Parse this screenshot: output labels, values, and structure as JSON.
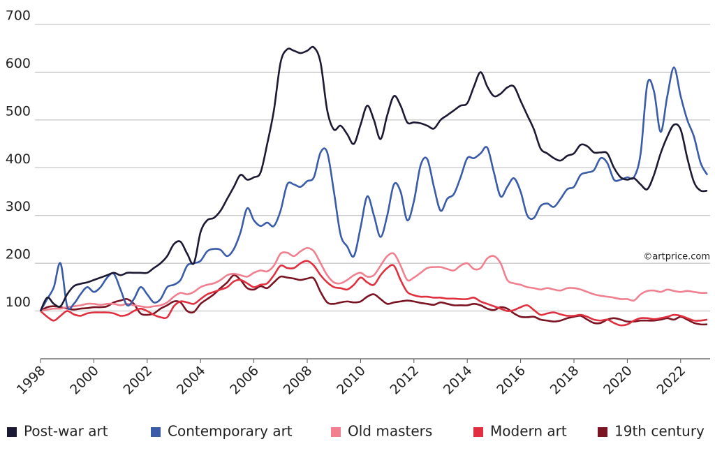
{
  "chart_data": {
    "type": "line",
    "annotation": "©artprice.com",
    "x": [
      1998,
      1998.25,
      1998.5,
      1998.75,
      1999,
      1999.25,
      1999.5,
      1999.75,
      2000,
      2000.25,
      2000.5,
      2000.75,
      2001,
      2001.25,
      2001.5,
      2001.75,
      2002,
      2002.25,
      2002.5,
      2002.75,
      2003,
      2003.25,
      2003.5,
      2003.75,
      2004,
      2004.25,
      2004.5,
      2004.75,
      2005,
      2005.25,
      2005.5,
      2005.75,
      2006,
      2006.25,
      2006.5,
      2006.75,
      2007,
      2007.25,
      2007.5,
      2007.75,
      2008,
      2008.25,
      2008.5,
      2008.75,
      2009,
      2009.25,
      2009.5,
      2009.75,
      2010,
      2010.25,
      2010.5,
      2010.75,
      2011,
      2011.25,
      2011.5,
      2011.75,
      2012,
      2012.25,
      2012.5,
      2012.75,
      2013,
      2013.25,
      2013.5,
      2013.75,
      2014,
      2014.25,
      2014.5,
      2014.75,
      2015,
      2015.25,
      2015.5,
      2015.75,
      2016,
      2016.25,
      2016.5,
      2016.75,
      2017,
      2017.25,
      2017.5,
      2017.75,
      2018,
      2018.25,
      2018.5,
      2018.75,
      2019,
      2019.25,
      2019.5,
      2019.75,
      2020,
      2020.25,
      2020.5,
      2020.75,
      2021,
      2021.25,
      2021.5,
      2021.75,
      2022,
      2022.25,
      2022.5,
      2022.75,
      2023
    ],
    "series": [
      {
        "name": "Post-war art",
        "color": "#1c1a33",
        "values": [
          100,
          128,
          115,
          110,
          135,
          152,
          157,
          160,
          165,
          170,
          175,
          180,
          175,
          180,
          180,
          180,
          180,
          190,
          200,
          215,
          240,
          245,
          220,
          200,
          265,
          290,
          295,
          310,
          335,
          360,
          385,
          375,
          380,
          390,
          450,
          520,
          620,
          648,
          645,
          640,
          645,
          652,
          620,
          520,
          480,
          488,
          470,
          450,
          490,
          530,
          500,
          460,
          510,
          550,
          530,
          495,
          495,
          493,
          488,
          482,
          500,
          510,
          520,
          530,
          535,
          570,
          600,
          570,
          550,
          555,
          568,
          570,
          540,
          510,
          480,
          440,
          430,
          420,
          415,
          425,
          430,
          448,
          445,
          432,
          432,
          430,
          400,
          380,
          375,
          378,
          365,
          355,
          385,
          430,
          465,
          490,
          480,
          420,
          370,
          352,
          352
        ]
      },
      {
        "name": "Contemporary art",
        "color": "#3a5ca8",
        "values": [
          100,
          125,
          150,
          200,
          110,
          115,
          135,
          150,
          140,
          150,
          170,
          178,
          145,
          112,
          125,
          150,
          135,
          118,
          125,
          150,
          155,
          165,
          195,
          200,
          205,
          225,
          230,
          228,
          215,
          230,
          265,
          315,
          290,
          278,
          285,
          278,
          310,
          365,
          365,
          360,
          372,
          380,
          432,
          432,
          350,
          260,
          235,
          215,
          275,
          340,
          300,
          255,
          300,
          365,
          350,
          290,
          330,
          405,
          418,
          360,
          310,
          335,
          345,
          380,
          420,
          420,
          430,
          442,
          390,
          340,
          360,
          378,
          350,
          300,
          295,
          320,
          325,
          318,
          335,
          355,
          360,
          385,
          390,
          395,
          420,
          410,
          375,
          375,
          380,
          380,
          430,
          575,
          560,
          475,
          550,
          610,
          550,
          500,
          465,
          410,
          385
        ]
      },
      {
        "name": "Old masters",
        "color": "#f0808f",
        "values": [
          100,
          103,
          105,
          105,
          108,
          110,
          112,
          115,
          115,
          113,
          115,
          115,
          112,
          115,
          112,
          110,
          108,
          110,
          112,
          118,
          130,
          138,
          135,
          140,
          150,
          155,
          158,
          165,
          175,
          178,
          175,
          172,
          180,
          185,
          183,
          195,
          220,
          222,
          215,
          225,
          232,
          225,
          200,
          175,
          160,
          158,
          165,
          175,
          180,
          172,
          175,
          195,
          215,
          220,
          195,
          165,
          170,
          180,
          190,
          192,
          192,
          188,
          185,
          195,
          200,
          188,
          190,
          210,
          215,
          200,
          165,
          158,
          155,
          150,
          148,
          145,
          148,
          145,
          143,
          148,
          148,
          145,
          140,
          135,
          132,
          130,
          128,
          125,
          125,
          122,
          135,
          142,
          143,
          140,
          145,
          142,
          140,
          142,
          140,
          138,
          138
        ]
      },
      {
        "name": "Modern art",
        "color": "#e0303f",
        "values": [
          100,
          88,
          80,
          90,
          100,
          93,
          90,
          95,
          97,
          97,
          97,
          95,
          90,
          92,
          100,
          105,
          100,
          92,
          87,
          87,
          110,
          120,
          118,
          115,
          125,
          135,
          140,
          145,
          150,
          162,
          165,
          158,
          150,
          155,
          158,
          175,
          195,
          190,
          190,
          200,
          205,
          195,
          175,
          160,
          150,
          148,
          145,
          155,
          170,
          160,
          155,
          175,
          190,
          195,
          165,
          140,
          133,
          130,
          130,
          128,
          128,
          126,
          126,
          125,
          125,
          128,
          120,
          115,
          110,
          105,
          100,
          102,
          108,
          112,
          102,
          92,
          95,
          97,
          93,
          90,
          90,
          92,
          88,
          82,
          80,
          82,
          75,
          70,
          72,
          80,
          85,
          85,
          83,
          85,
          88,
          92,
          90,
          85,
          80,
          80,
          82
        ]
      },
      {
        "name": "19th century",
        "color": "#7a1322",
        "values": [
          100,
          108,
          110,
          108,
          105,
          103,
          105,
          106,
          108,
          108,
          110,
          118,
          122,
          125,
          115,
          95,
          92,
          95,
          105,
          112,
          120,
          118,
          100,
          98,
          115,
          125,
          135,
          148,
          160,
          175,
          165,
          148,
          145,
          152,
          148,
          160,
          172,
          170,
          168,
          165,
          168,
          168,
          140,
          118,
          115,
          118,
          120,
          118,
          120,
          130,
          135,
          125,
          115,
          118,
          120,
          122,
          120,
          117,
          115,
          113,
          118,
          115,
          112,
          112,
          112,
          115,
          112,
          105,
          102,
          108,
          105,
          95,
          88,
          87,
          88,
          82,
          80,
          78,
          80,
          85,
          88,
          90,
          82,
          75,
          75,
          82,
          85,
          82,
          78,
          78,
          80,
          80,
          80,
          82,
          85,
          82,
          88,
          82,
          75,
          72,
          72
        ]
      }
    ],
    "xlim": [
      1998,
      2023
    ],
    "xticks": [
      1998,
      2000,
      2002,
      2004,
      2006,
      2008,
      2010,
      2012,
      2014,
      2016,
      2018,
      2020,
      2022
    ],
    "ylim": [
      0,
      700
    ],
    "yticks": [
      100,
      200,
      300,
      400,
      500,
      600,
      700
    ],
    "grid": true
  }
}
